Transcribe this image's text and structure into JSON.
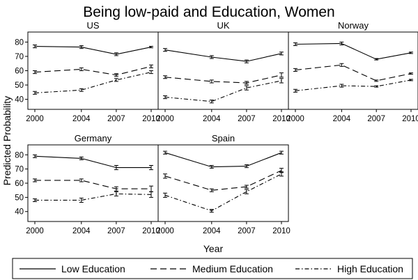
{
  "chart_data": {
    "type": "line",
    "title": "Being low-paid and Education, Women",
    "xlabel": "Year",
    "ylabel": "Predicted Probability",
    "x": [
      2000,
      2004,
      2007,
      2010
    ],
    "xlim": [
      2000,
      2010
    ],
    "ylim": [
      33,
      87
    ],
    "yticks": [
      40,
      50,
      60,
      70,
      80
    ],
    "grid": false,
    "legend_position": "bottom",
    "series_styles": [
      {
        "name": "Low Education",
        "dash": "solid"
      },
      {
        "name": "Medium Education",
        "dash": "dashed"
      },
      {
        "name": "High Education",
        "dash": "dash-dot"
      }
    ],
    "panels": [
      {
        "title": "US",
        "series": [
          {
            "name": "Low Education",
            "values": [
              77,
              76.5,
              71.5,
              76.5
            ],
            "ci": [
              [
                76,
                78
              ],
              [
                75.5,
                77.5
              ],
              [
                70.5,
                72.5
              ],
              [
                76,
                77
              ]
            ]
          },
          {
            "name": "Medium Education",
            "values": [
              59,
              61,
              57,
              63
            ],
            "ci": [
              [
                58,
                60
              ],
              [
                60,
                62
              ],
              [
                56,
                58
              ],
              [
                62,
                64
              ]
            ]
          },
          {
            "name": "High Education",
            "values": [
              44.5,
              46.5,
              53.5,
              59
            ],
            "ci": [
              [
                43.5,
                45.5
              ],
              [
                45.5,
                47.5
              ],
              [
                52.5,
                54.5
              ],
              [
                58,
                60
              ]
            ]
          }
        ]
      },
      {
        "title": "UK",
        "series": [
          {
            "name": "Low Education",
            "values": [
              74.5,
              69.5,
              66.5,
              72
            ],
            "ci": [
              [
                73.5,
                75.5
              ],
              [
                68.5,
                70.5
              ],
              [
                65.5,
                67.5
              ],
              [
                71,
                73
              ]
            ]
          },
          {
            "name": "Medium Education",
            "values": [
              55.5,
              52.5,
              51.5,
              57
            ],
            "ci": [
              [
                54.5,
                56.5
              ],
              [
                51.5,
                53.5
              ],
              [
                50.5,
                52.5
              ],
              [
                55.5,
                58.5
              ]
            ]
          },
          {
            "name": "High Education",
            "values": [
              41.5,
              38.5,
              48,
              53
            ],
            "ci": [
              [
                40.5,
                42.5
              ],
              [
                37.5,
                39.5
              ],
              [
                46.5,
                49.5
              ],
              [
                51.5,
                54.5
              ]
            ]
          }
        ]
      },
      {
        "title": "Norway",
        "series": [
          {
            "name": "Low Education",
            "values": [
              78.5,
              79,
              68,
              72.5
            ],
            "ci": [
              [
                77.5,
                79.5
              ],
              [
                78,
                80
              ],
              [
                67.5,
                68.5
              ],
              [
                72,
                73
              ]
            ]
          },
          {
            "name": "Medium Education",
            "values": [
              60.5,
              64,
              53,
              58
            ],
            "ci": [
              [
                59.5,
                61.5
              ],
              [
                63,
                65
              ],
              [
                52.5,
                53.5
              ],
              [
                57.5,
                58.5
              ]
            ]
          },
          {
            "name": "High Education",
            "values": [
              46,
              49.5,
              49,
              53.5
            ],
            "ci": [
              [
                45,
                47
              ],
              [
                48.5,
                50.5
              ],
              [
                48.5,
                49.5
              ],
              [
                53,
                54
              ]
            ]
          }
        ]
      },
      {
        "title": "Germany",
        "series": [
          {
            "name": "Low Education",
            "values": [
              79,
              77.5,
              71,
              71
            ],
            "ci": [
              [
                78,
                80
              ],
              [
                76.5,
                78.5
              ],
              [
                69.5,
                72.5
              ],
              [
                69.5,
                72.5
              ]
            ]
          },
          {
            "name": "Medium Education",
            "values": [
              62,
              62,
              56,
              56
            ],
            "ci": [
              [
                61,
                63
              ],
              [
                61,
                63
              ],
              [
                54.5,
                57.5
              ],
              [
                54,
                58
              ]
            ]
          },
          {
            "name": "High Education",
            "values": [
              48,
              48,
              52.5,
              52
            ],
            "ci": [
              [
                47,
                49
              ],
              [
                46.5,
                49.5
              ],
              [
                51,
                54
              ],
              [
                50,
                54
              ]
            ]
          }
        ]
      },
      {
        "title": "Spain",
        "series": [
          {
            "name": "Low Education",
            "values": [
              81.5,
              71.5,
              72,
              81.5
            ],
            "ci": [
              [
                80.5,
                82.5
              ],
              [
                70.5,
                72.5
              ],
              [
                71,
                73
              ],
              [
                80.5,
                82.5
              ]
            ]
          },
          {
            "name": "Medium Education",
            "values": [
              65,
              55,
              57.5,
              69
            ],
            "ci": [
              [
                63.5,
                66.5
              ],
              [
                54,
                56
              ],
              [
                56.5,
                58.5
              ],
              [
                67.5,
                70.5
              ]
            ]
          },
          {
            "name": "High Education",
            "values": [
              51.5,
              40.5,
              54,
              66.5
            ],
            "ci": [
              [
                50,
                53
              ],
              [
                39.5,
                41.5
              ],
              [
                52.5,
                55.5
              ],
              [
                65,
                68
              ]
            ]
          }
        ]
      }
    ]
  }
}
